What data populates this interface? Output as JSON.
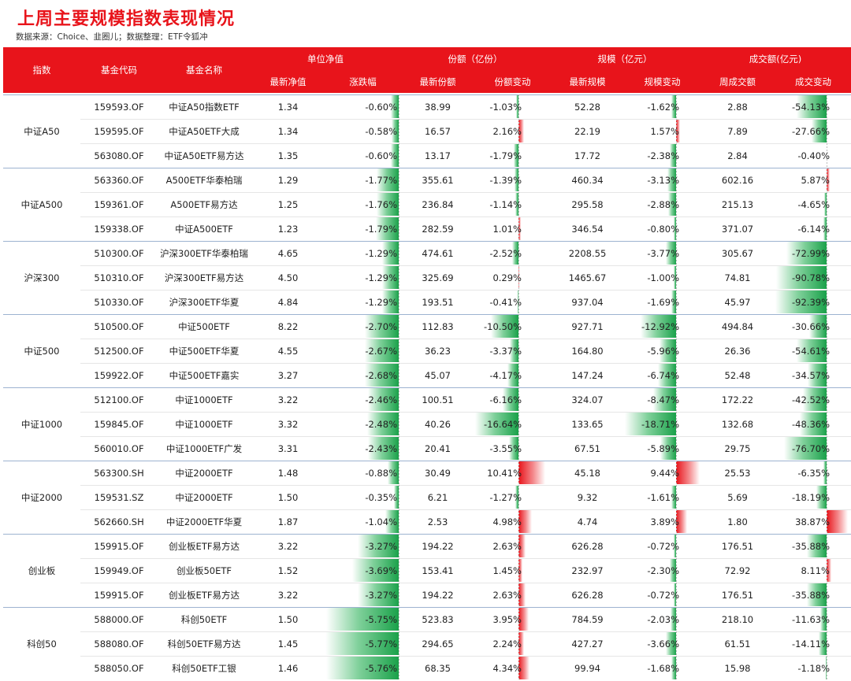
{
  "title": "上周主要规模指数表现情况",
  "subtitle": "数据来源：Choice、韭圈儿；数据整理：ETF令狐冲",
  "headers": {
    "index": "指数",
    "code": "基金代码",
    "name": "基金名称",
    "nav_group": "单位净值",
    "share_group": "份额（亿份）",
    "scale_group": "规模（亿元）",
    "turnover_group": "成交额(亿元)",
    "nav": "最新净值",
    "chg": "涨跌幅",
    "share": "最新份额",
    "share_chg": "份额变动",
    "scale": "最新规模",
    "scale_chg": "规模变动",
    "turnover": "周成交额",
    "turnover_chg": "成交变动"
  },
  "colors": {
    "accent": "#e8141b",
    "negative": "#1aa14a",
    "positive": "#e8141b"
  },
  "groups": [
    {
      "label": "中证A50",
      "rows": [
        {
          "code": "159593.OF",
          "name": "中证A50指数ETF",
          "nav": "1.34",
          "chg": "-0.60%",
          "share": "38.99",
          "share_chg": "-1.03%",
          "scale": "52.28",
          "scale_chg": "-1.62%",
          "turnover": "2.88",
          "turnover_chg": "-54.13%"
        },
        {
          "code": "159595.OF",
          "name": "中证A50ETF大成",
          "nav": "1.34",
          "chg": "-0.58%",
          "share": "16.57",
          "share_chg": "2.16%",
          "scale": "22.19",
          "scale_chg": "1.57%",
          "turnover": "7.89",
          "turnover_chg": "-27.66%"
        },
        {
          "code": "563080.OF",
          "name": "中证A50ETF易方达",
          "nav": "1.35",
          "chg": "-0.60%",
          "share": "13.17",
          "share_chg": "-1.79%",
          "scale": "17.72",
          "scale_chg": "-2.38%",
          "turnover": "2.84",
          "turnover_chg": "-0.40%"
        }
      ]
    },
    {
      "label": "中证A500",
      "rows": [
        {
          "code": "563360.OF",
          "name": "A500ETF华泰柏瑞",
          "nav": "1.29",
          "chg": "-1.77%",
          "share": "355.61",
          "share_chg": "-1.39%",
          "scale": "460.34",
          "scale_chg": "-3.13%",
          "turnover": "602.16",
          "turnover_chg": "5.87%"
        },
        {
          "code": "159361.OF",
          "name": "A500ETF易方达",
          "nav": "1.25",
          "chg": "-1.76%",
          "share": "236.84",
          "share_chg": "-1.14%",
          "scale": "295.58",
          "scale_chg": "-2.88%",
          "turnover": "215.13",
          "turnover_chg": "-4.65%"
        },
        {
          "code": "159338.OF",
          "name": "中证A500ETF",
          "nav": "1.23",
          "chg": "-1.79%",
          "share": "282.59",
          "share_chg": "1.01%",
          "scale": "346.54",
          "scale_chg": "-0.80%",
          "turnover": "371.07",
          "turnover_chg": "-6.14%"
        }
      ]
    },
    {
      "label": "沪深300",
      "rows": [
        {
          "code": "510300.OF",
          "name": "沪深300ETF华泰柏瑞",
          "nav": "4.65",
          "chg": "-1.29%",
          "share": "474.61",
          "share_chg": "-2.52%",
          "scale": "2208.55",
          "scale_chg": "-3.77%",
          "turnover": "305.67",
          "turnover_chg": "-72.99%"
        },
        {
          "code": "510310.OF",
          "name": "沪深300ETF易方达",
          "nav": "4.50",
          "chg": "-1.29%",
          "share": "325.69",
          "share_chg": "0.29%",
          "scale": "1465.67",
          "scale_chg": "-1.00%",
          "turnover": "74.81",
          "turnover_chg": "-90.78%"
        },
        {
          "code": "510330.OF",
          "name": "沪深300ETF华夏",
          "nav": "4.84",
          "chg": "-1.29%",
          "share": "193.51",
          "share_chg": "-0.41%",
          "scale": "937.04",
          "scale_chg": "-1.69%",
          "turnover": "45.97",
          "turnover_chg": "-92.39%"
        }
      ]
    },
    {
      "label": "中证500",
      "rows": [
        {
          "code": "510500.OF",
          "name": "中证500ETF",
          "nav": "8.22",
          "chg": "-2.70%",
          "share": "112.83",
          "share_chg": "-10.50%",
          "scale": "927.71",
          "scale_chg": "-12.92%",
          "turnover": "494.84",
          "turnover_chg": "-30.66%"
        },
        {
          "code": "512500.OF",
          "name": "中证500ETF华夏",
          "nav": "4.55",
          "chg": "-2.67%",
          "share": "36.23",
          "share_chg": "-3.37%",
          "scale": "164.80",
          "scale_chg": "-5.96%",
          "turnover": "26.36",
          "turnover_chg": "-54.61%"
        },
        {
          "code": "159922.OF",
          "name": "中证500ETF嘉实",
          "nav": "3.27",
          "chg": "-2.68%",
          "share": "45.07",
          "share_chg": "-4.17%",
          "scale": "147.24",
          "scale_chg": "-6.74%",
          "turnover": "52.48",
          "turnover_chg": "-34.57%"
        }
      ]
    },
    {
      "label": "中证1000",
      "rows": [
        {
          "code": "512100.OF",
          "name": "中证1000ETF",
          "nav": "3.22",
          "chg": "-2.46%",
          "share": "100.51",
          "share_chg": "-6.16%",
          "scale": "324.07",
          "scale_chg": "-8.47%",
          "turnover": "172.22",
          "turnover_chg": "-42.52%"
        },
        {
          "code": "159845.OF",
          "name": "中证1000ETF",
          "nav": "3.32",
          "chg": "-2.48%",
          "share": "40.26",
          "share_chg": "-16.64%",
          "scale": "133.65",
          "scale_chg": "-18.71%",
          "turnover": "132.68",
          "turnover_chg": "-48.36%"
        },
        {
          "code": "560010.OF",
          "name": "中证1000ETF广发",
          "nav": "3.31",
          "chg": "-2.43%",
          "share": "20.41",
          "share_chg": "-3.55%",
          "scale": "67.51",
          "scale_chg": "-5.89%",
          "turnover": "29.75",
          "turnover_chg": "-76.70%"
        }
      ]
    },
    {
      "label": "中证2000",
      "rows": [
        {
          "code": "563300.SH",
          "name": "中证2000ETF",
          "nav": "1.48",
          "chg": "-0.88%",
          "share": "30.49",
          "share_chg": "10.41%",
          "scale": "45.18",
          "scale_chg": "9.44%",
          "turnover": "25.53",
          "turnover_chg": "-6.35%"
        },
        {
          "code": "159531.SZ",
          "name": "中证2000ETF",
          "nav": "1.50",
          "chg": "-0.35%",
          "share": "6.21",
          "share_chg": "-1.27%",
          "scale": "9.32",
          "scale_chg": "-1.61%",
          "turnover": "5.69",
          "turnover_chg": "-18.19%"
        },
        {
          "code": "562660.SH",
          "name": "中证2000ETF华夏",
          "nav": "1.87",
          "chg": "-1.04%",
          "share": "2.53",
          "share_chg": "4.98%",
          "scale": "4.74",
          "scale_chg": "3.89%",
          "turnover": "1.80",
          "turnover_chg": "38.87%"
        }
      ]
    },
    {
      "label": "创业板",
      "rows": [
        {
          "code": "159915.OF",
          "name": "创业板ETF易方达",
          "nav": "3.22",
          "chg": "-3.27%",
          "share": "194.22",
          "share_chg": "2.63%",
          "scale": "626.28",
          "scale_chg": "-0.72%",
          "turnover": "176.51",
          "turnover_chg": "-35.88%"
        },
        {
          "code": "159949.OF",
          "name": "创业板50ETF",
          "nav": "1.52",
          "chg": "-3.69%",
          "share": "153.41",
          "share_chg": "1.45%",
          "scale": "232.97",
          "scale_chg": "-2.30%",
          "turnover": "72.92",
          "turnover_chg": "8.11%"
        },
        {
          "code": "159915.OF",
          "name": "创业板ETF易方达",
          "nav": "3.22",
          "chg": "-3.27%",
          "share": "194.22",
          "share_chg": "2.63%",
          "scale": "626.28",
          "scale_chg": "-0.72%",
          "turnover": "176.51",
          "turnover_chg": "-35.88%"
        }
      ]
    },
    {
      "label": "科创50",
      "rows": [
        {
          "code": "588000.OF",
          "name": "科创50ETF",
          "nav": "1.50",
          "chg": "-5.75%",
          "share": "523.83",
          "share_chg": "3.95%",
          "scale": "784.59",
          "scale_chg": "-2.03%",
          "turnover": "218.10",
          "turnover_chg": "-11.63%"
        },
        {
          "code": "588080.OF",
          "name": "科创50ETF易方达",
          "nav": "1.45",
          "chg": "-5.77%",
          "share": "294.65",
          "share_chg": "2.24%",
          "scale": "427.27",
          "scale_chg": "-3.66%",
          "turnover": "61.51",
          "turnover_chg": "-14.11%"
        },
        {
          "code": "588050.OF",
          "name": "科创50ETF工银",
          "nav": "1.46",
          "chg": "-5.76%",
          "share": "68.35",
          "share_chg": "4.34%",
          "scale": "99.94",
          "scale_chg": "-1.68%",
          "turnover": "15.98",
          "turnover_chg": "-1.18%"
        }
      ]
    }
  ]
}
